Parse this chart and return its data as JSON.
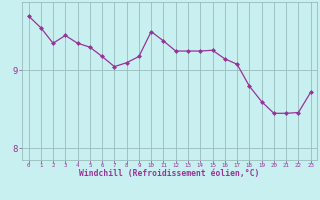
{
  "x": [
    0,
    1,
    2,
    3,
    4,
    5,
    6,
    7,
    8,
    9,
    10,
    11,
    12,
    13,
    14,
    15,
    16,
    17,
    18,
    19,
    20,
    21,
    22,
    23
  ],
  "y": [
    9.7,
    9.55,
    9.35,
    9.45,
    9.35,
    9.3,
    9.18,
    9.05,
    9.1,
    9.18,
    9.5,
    9.38,
    9.25,
    9.25,
    9.25,
    9.26,
    9.15,
    9.08,
    8.8,
    8.6,
    8.45,
    8.45,
    8.46,
    8.72
  ],
  "line_color": "#993399",
  "bg_color": "#c8f0f0",
  "grid_color": "#99bbbb",
  "xlabel": "Windchill (Refroidissement éolien,°C)",
  "xlabel_color": "#993399",
  "yticks": [
    8,
    9
  ],
  "xticks": [
    0,
    1,
    2,
    3,
    4,
    5,
    6,
    7,
    8,
    9,
    10,
    11,
    12,
    13,
    14,
    15,
    16,
    17,
    18,
    19,
    20,
    21,
    22,
    23
  ],
  "ylim": [
    7.85,
    9.88
  ],
  "xlim": [
    -0.5,
    23.5
  ],
  "tick_color": "#993399",
  "marker": "D",
  "markersize": 2.0,
  "linewidth": 0.9
}
